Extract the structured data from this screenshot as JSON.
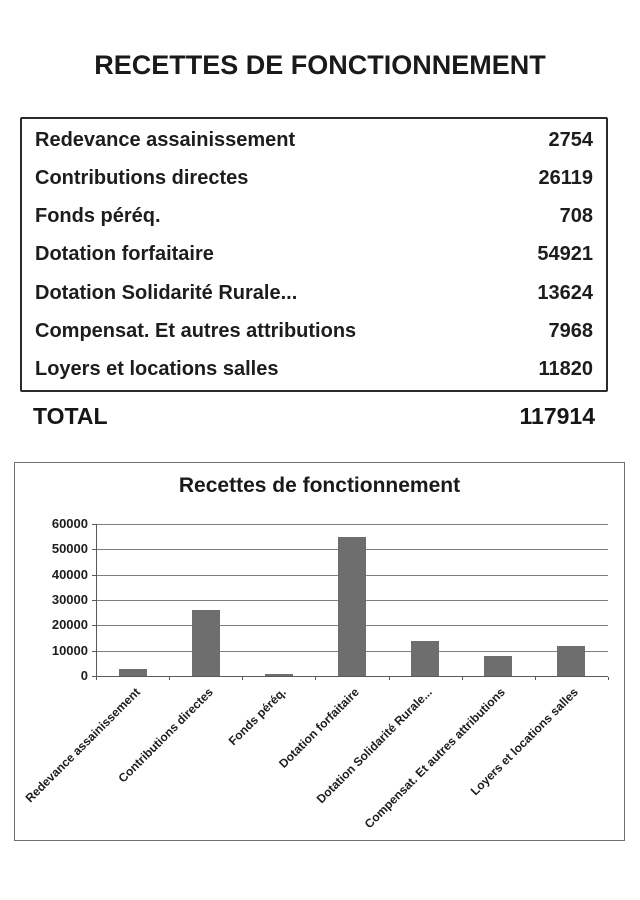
{
  "page": {
    "title": "RECETTES DE FONCTIONNEMENT"
  },
  "table": {
    "rows": [
      {
        "label": "Redevance assainissement",
        "value": "2754"
      },
      {
        "label": "Contributions directes",
        "value": "26119"
      },
      {
        "label": "Fonds péréq.",
        "value": "708"
      },
      {
        "label": "Dotation forfaitaire",
        "value": "54921"
      },
      {
        "label": "Dotation Solidarité Rurale...",
        "value": "13624"
      },
      {
        "label": "Compensat. Et autres attributions",
        "value": "7968"
      },
      {
        "label": "Loyers et locations salles",
        "value": "11820"
      }
    ],
    "total_label": "TOTAL",
    "total_value": "117914"
  },
  "chart_data": {
    "type": "bar",
    "title": "Recettes de fonctionnement",
    "categories": [
      "Redevance assainissement",
      "Contributions directes",
      "Fonds péréq.",
      "Dotation forfaitaire",
      "Dotation Solidarité Rurale...",
      "Compensat. Et autres attributions",
      "Loyers et locations salles"
    ],
    "values": [
      2754,
      26119,
      708,
      54921,
      13624,
      7968,
      11820
    ],
    "xlabel": "",
    "ylabel": "",
    "ylim": [
      0,
      60000
    ],
    "yticks": [
      0,
      10000,
      20000,
      30000,
      40000,
      50000,
      60000
    ],
    "grid": true,
    "legend_position": "none",
    "bar_color": "#6e6e6e"
  }
}
